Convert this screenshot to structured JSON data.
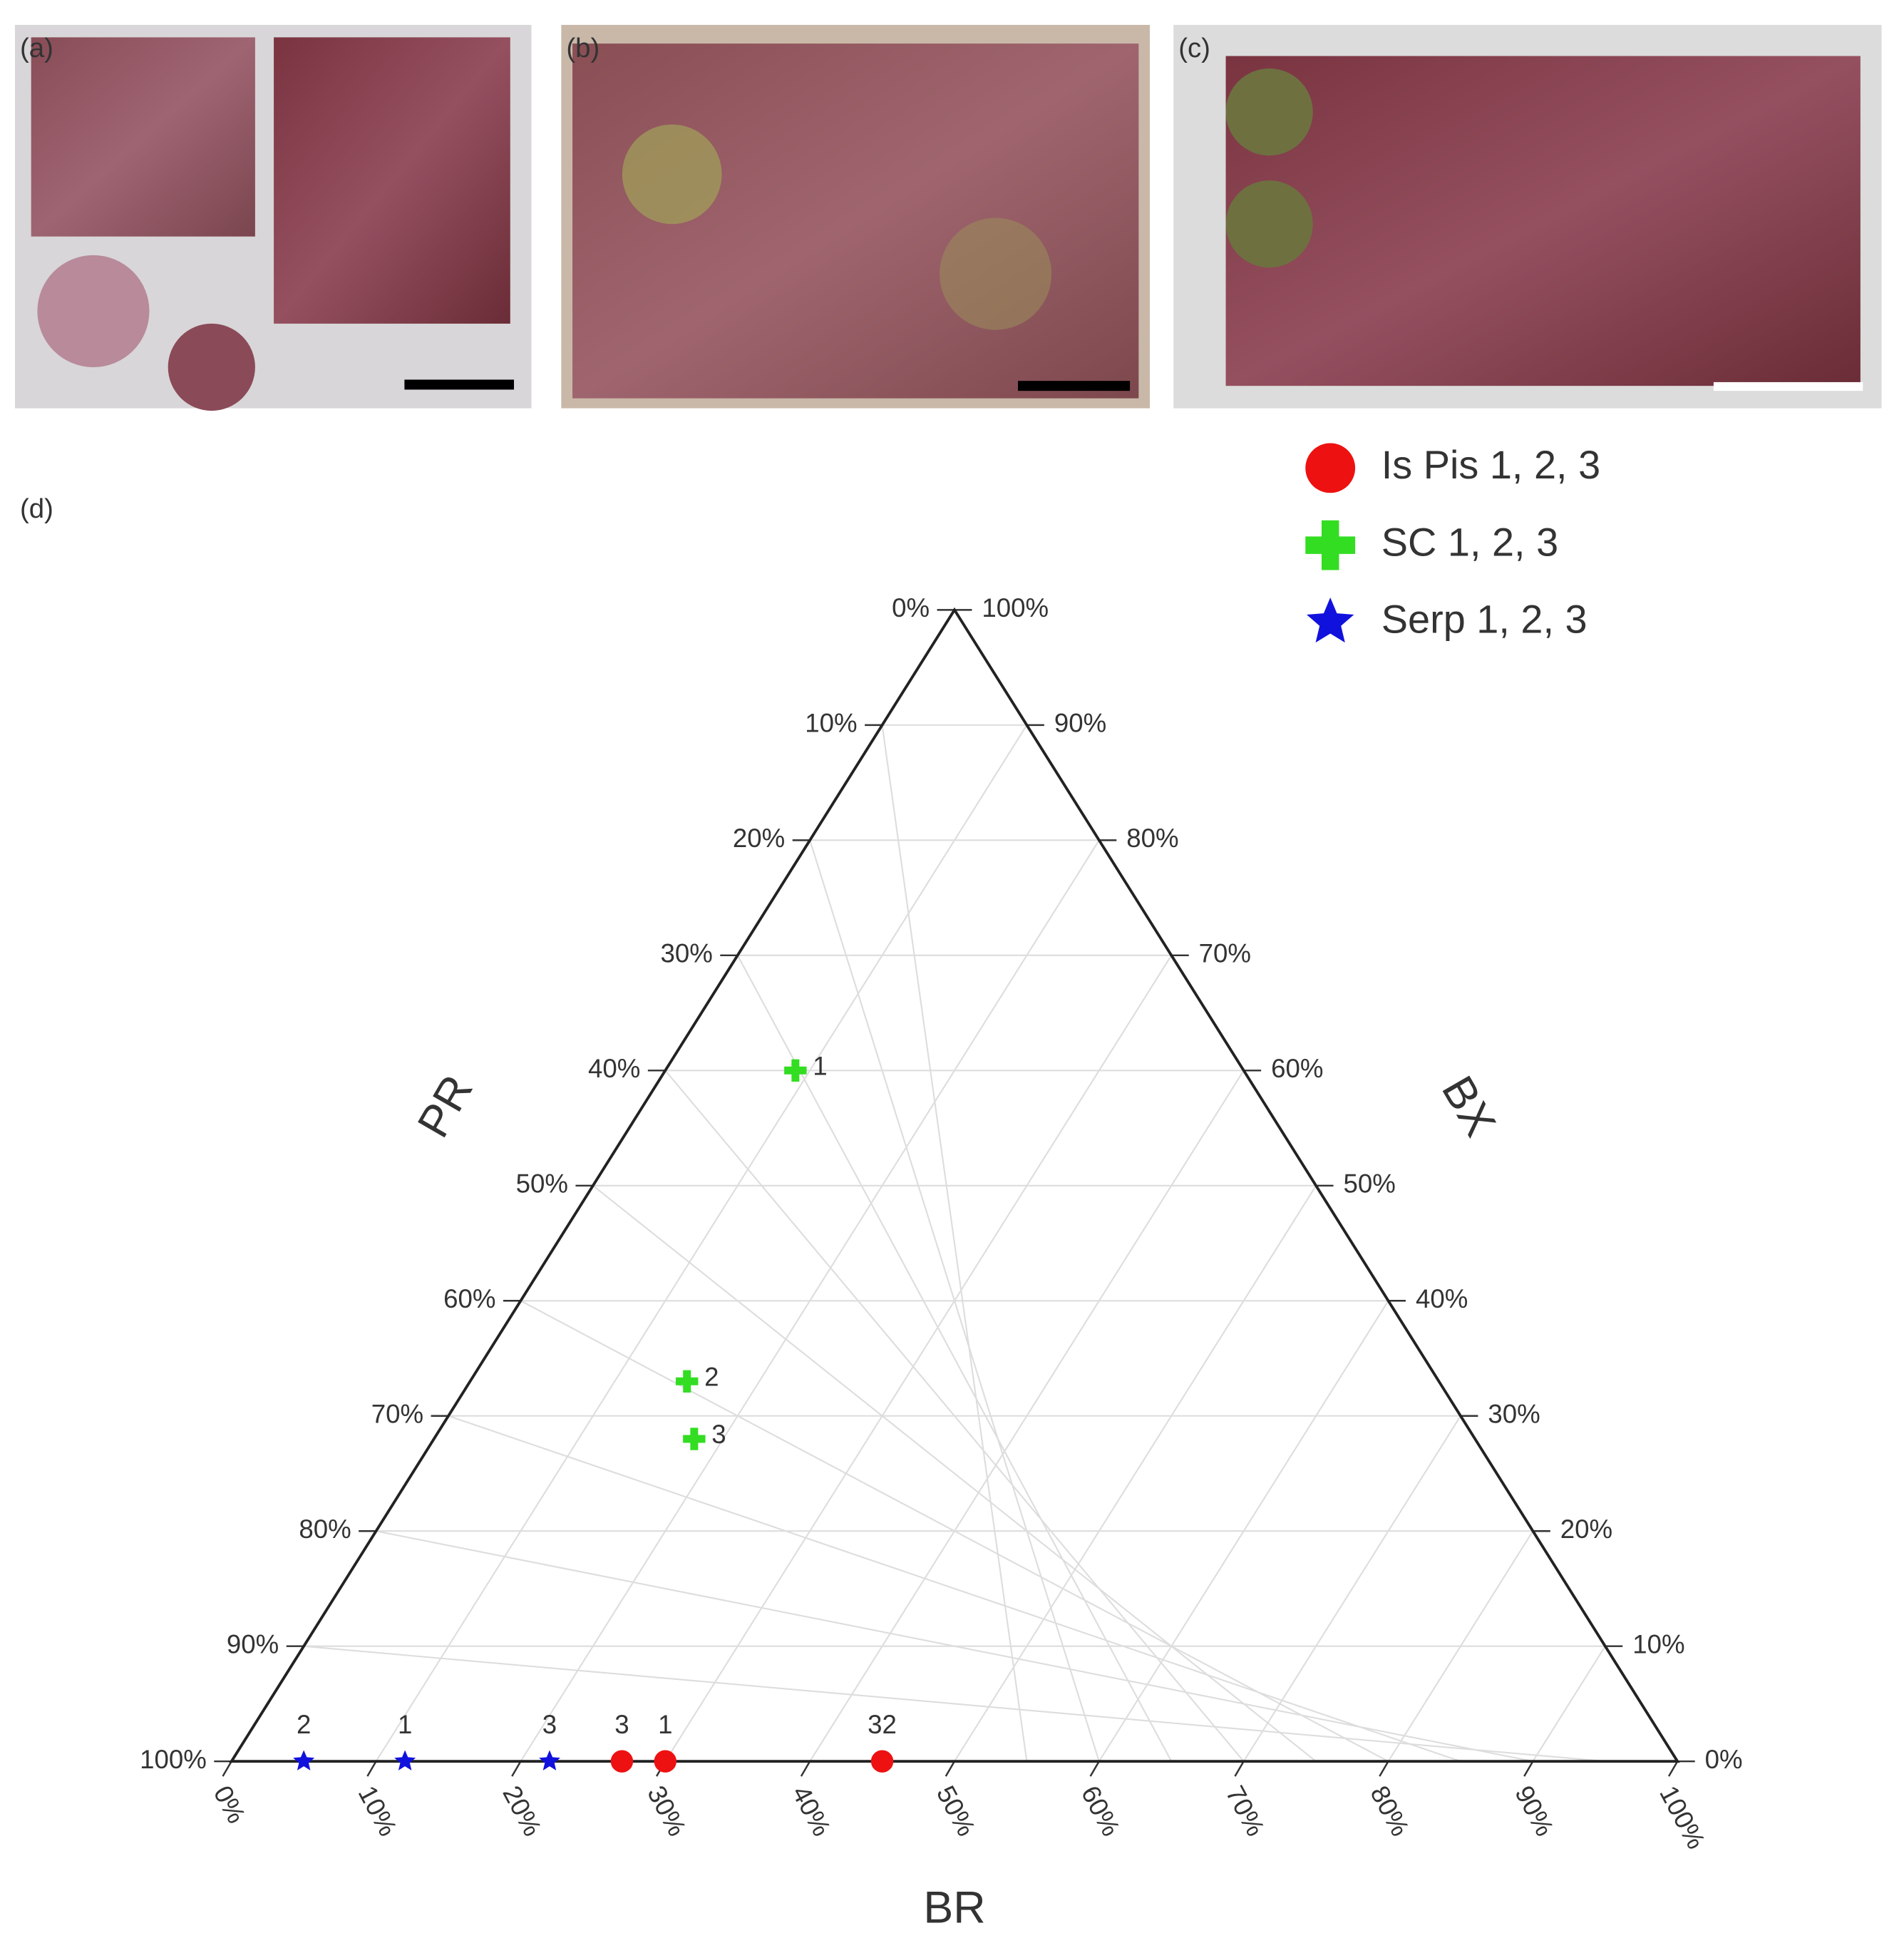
{
  "panels": [
    "(a)",
    "(b)",
    "(c)"
  ],
  "chart_data": {
    "type": "ternary",
    "panel_label": "(d)",
    "grid": true,
    "axes": {
      "left": {
        "title": "PR",
        "ticks": [
          {
            "value": 0,
            "label": "0%"
          },
          {
            "value": 10,
            "label": "10%"
          },
          {
            "value": 20,
            "label": "20%"
          },
          {
            "value": 30,
            "label": "30%"
          },
          {
            "value": 40,
            "label": "40%"
          },
          {
            "value": 50,
            "label": "50%"
          },
          {
            "value": 60,
            "label": "60%"
          },
          {
            "value": 70,
            "label": "70%"
          },
          {
            "value": 80,
            "label": "80%"
          },
          {
            "value": 90,
            "label": "90%"
          },
          {
            "value": 100,
            "label": "100%"
          }
        ]
      },
      "right": {
        "title": "BX",
        "ticks": [
          {
            "value": 0,
            "label": "0%"
          },
          {
            "value": 10,
            "label": "10%"
          },
          {
            "value": 20,
            "label": "20%"
          },
          {
            "value": 30,
            "label": "30%"
          },
          {
            "value": 40,
            "label": "40%"
          },
          {
            "value": 50,
            "label": "50%"
          },
          {
            "value": 60,
            "label": "60%"
          },
          {
            "value": 70,
            "label": "70%"
          },
          {
            "value": 80,
            "label": "80%"
          },
          {
            "value": 90,
            "label": "90%"
          },
          {
            "value": 100,
            "label": "100%"
          }
        ]
      },
      "bottom": {
        "title": "BR",
        "ticks": [
          {
            "value": 0,
            "label": "0%"
          },
          {
            "value": 10,
            "label": "10%"
          },
          {
            "value": 20,
            "label": "20%"
          },
          {
            "value": 30,
            "label": "30%"
          },
          {
            "value": 40,
            "label": "40%"
          },
          {
            "value": 50,
            "label": "50%"
          },
          {
            "value": 60,
            "label": "60%"
          },
          {
            "value": 70,
            "label": "70%"
          },
          {
            "value": 80,
            "label": "80%"
          },
          {
            "value": 90,
            "label": "90%"
          },
          {
            "value": 100,
            "label": "100%"
          }
        ]
      }
    },
    "series": [
      {
        "name": "Is Pis 1, 2, 3",
        "color": "#ee1111",
        "marker": "circle",
        "br": [
          27,
          30,
          45
        ],
        "bx": [
          0,
          0,
          0
        ],
        "labels": [
          "3",
          "1",
          "32"
        ]
      },
      {
        "name": "SC 1, 2, 3",
        "color": "#33dd22",
        "marker": "plus",
        "br": [
          9,
          15,
          18
        ],
        "bx": [
          60,
          33,
          28
        ],
        "labels": [
          "1",
          "2",
          "3"
        ]
      },
      {
        "name": "Serp 1, 2, 3",
        "color": "#1111dd",
        "marker": "star",
        "br": [
          5,
          12,
          22
        ],
        "bx": [
          0,
          0,
          0
        ],
        "labels": [
          "2",
          "1",
          "3"
        ]
      }
    ]
  }
}
